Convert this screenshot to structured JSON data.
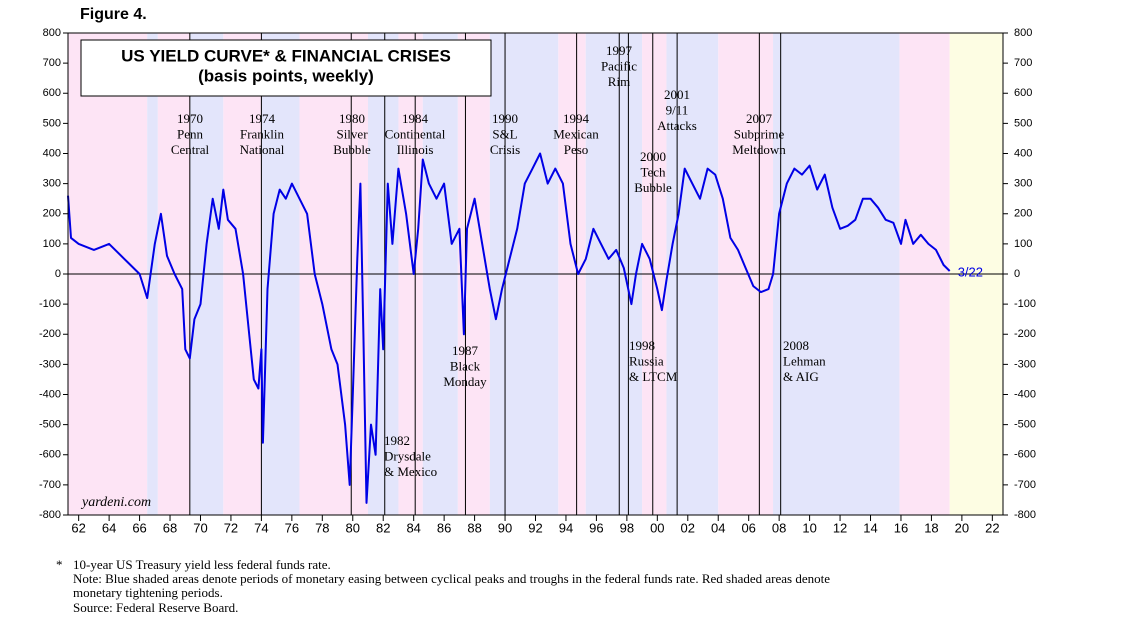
{
  "chart_data": {
    "type": "line",
    "figure_label": "Figure 4.",
    "title": "US YIELD CURVE* & FINANCIAL CRISES",
    "subtitle": "(basis points, weekly)",
    "watermark": "yardeni.com",
    "end_label": "3/22",
    "xlim": [
      1961.3,
      2022.7
    ],
    "ylim": [
      -800,
      800
    ],
    "yticks": [
      800,
      700,
      600,
      500,
      400,
      300,
      200,
      100,
      0,
      -100,
      -200,
      -300,
      -400,
      -500,
      -600,
      -700,
      -800
    ],
    "xticks": [
      {
        "value": 1962,
        "label": "62"
      },
      {
        "value": 1964,
        "label": "64"
      },
      {
        "value": 1966,
        "label": "66"
      },
      {
        "value": 1968,
        "label": "68"
      },
      {
        "value": 1970,
        "label": "70"
      },
      {
        "value": 1972,
        "label": "72"
      },
      {
        "value": 1974,
        "label": "74"
      },
      {
        "value": 1976,
        "label": "76"
      },
      {
        "value": 1978,
        "label": "78"
      },
      {
        "value": 1980,
        "label": "80"
      },
      {
        "value": 1982,
        "label": "82"
      },
      {
        "value": 1984,
        "label": "84"
      },
      {
        "value": 1986,
        "label": "86"
      },
      {
        "value": 1988,
        "label": "88"
      },
      {
        "value": 1990,
        "label": "90"
      },
      {
        "value": 1992,
        "label": "92"
      },
      {
        "value": 1994,
        "label": "94"
      },
      {
        "value": 1996,
        "label": "96"
      },
      {
        "value": 1998,
        "label": "98"
      },
      {
        "value": 2000,
        "label": "00"
      },
      {
        "value": 2002,
        "label": "02"
      },
      {
        "value": 2004,
        "label": "04"
      },
      {
        "value": 2006,
        "label": "06"
      },
      {
        "value": 2008,
        "label": "08"
      },
      {
        "value": 2010,
        "label": "10"
      },
      {
        "value": 2012,
        "label": "12"
      },
      {
        "value": 2014,
        "label": "14"
      },
      {
        "value": 2016,
        "label": "16"
      },
      {
        "value": 2018,
        "label": "18"
      },
      {
        "value": 2020,
        "label": "20"
      },
      {
        "value": 2022,
        "label": "22"
      }
    ],
    "period_colors": {
      "tightening": "#fde4f5",
      "easing": "#e3e5fb",
      "other": "#fdfde3"
    },
    "periods": [
      {
        "start": 1961.3,
        "end": 1966.5,
        "kind": "tightening"
      },
      {
        "start": 1966.5,
        "end": 1967.2,
        "kind": "easing"
      },
      {
        "start": 1967.2,
        "end": 1969.3,
        "kind": "tightening"
      },
      {
        "start": 1969.3,
        "end": 1971.5,
        "kind": "easing"
      },
      {
        "start": 1971.5,
        "end": 1974.0,
        "kind": "tightening"
      },
      {
        "start": 1974.0,
        "end": 1976.5,
        "kind": "easing"
      },
      {
        "start": 1976.5,
        "end": 1981.0,
        "kind": "tightening"
      },
      {
        "start": 1981.0,
        "end": 1983.0,
        "kind": "easing"
      },
      {
        "start": 1983.0,
        "end": 1984.6,
        "kind": "tightening"
      },
      {
        "start": 1984.6,
        "end": 1986.9,
        "kind": "easing"
      },
      {
        "start": 1986.9,
        "end": 1989.0,
        "kind": "tightening"
      },
      {
        "start": 1989.0,
        "end": 1993.5,
        "kind": "easing"
      },
      {
        "start": 1993.5,
        "end": 1995.3,
        "kind": "tightening"
      },
      {
        "start": 1995.3,
        "end": 1999.0,
        "kind": "easing"
      },
      {
        "start": 1999.0,
        "end": 2000.6,
        "kind": "tightening"
      },
      {
        "start": 2000.6,
        "end": 2004.0,
        "kind": "easing"
      },
      {
        "start": 2004.0,
        "end": 2007.6,
        "kind": "tightening"
      },
      {
        "start": 2007.6,
        "end": 2015.9,
        "kind": "easing"
      },
      {
        "start": 2015.9,
        "end": 2019.2,
        "kind": "tightening"
      },
      {
        "start": 2019.2,
        "end": 2022.7,
        "kind": "other"
      }
    ],
    "events": [
      {
        "x": 1969.3,
        "label": [
          "1970",
          "Penn",
          "Central"
        ]
      },
      {
        "x": 1974.0,
        "label": [
          "1974",
          "Franklin",
          "National"
        ]
      },
      {
        "x": 1979.9,
        "label": [
          "1980",
          "Silver",
          "Bubble"
        ]
      },
      {
        "x": 1982.1,
        "label": [
          "1982",
          "Drysdale",
          "& Mexico"
        ]
      },
      {
        "x": 1984.1,
        "label": [
          "1984",
          "Continental",
          "Illinois"
        ]
      },
      {
        "x": 1987.4,
        "label": [
          "1987",
          "Black",
          "Monday"
        ]
      },
      {
        "x": 1990.0,
        "label": [
          "1990",
          "S&L",
          "Crisis"
        ]
      },
      {
        "x": 1994.7,
        "label": [
          "1994",
          "Mexican",
          "Peso"
        ]
      },
      {
        "x": 1997.5,
        "label": [
          "1997",
          "Pacific",
          "Rim"
        ]
      },
      {
        "x": 1998.1,
        "label": [
          "1998",
          "Russia",
          "& LTCM"
        ]
      },
      {
        "x": 1999.7,
        "label": [
          "2000",
          "Tech",
          "Bubble"
        ]
      },
      {
        "x": 2001.3,
        "label": [
          "2001",
          "9/11",
          "Attacks"
        ]
      },
      {
        "x": 2006.7,
        "label": [
          "2007",
          "Subprime",
          "Meltdown"
        ]
      },
      {
        "x": 2008.1,
        "label": [
          "2008",
          "Lehman",
          "& AIG"
        ]
      }
    ],
    "series": [
      {
        "name": "US yield curve",
        "color": "#0000e6",
        "x": [
          1961.3,
          1961.5,
          1962,
          1963,
          1964,
          1965,
          1966,
          1966.5,
          1967,
          1967.4,
          1967.8,
          1968.3,
          1968.8,
          1969,
          1969.3,
          1969.6,
          1970,
          1970.4,
          1970.8,
          1971.2,
          1971.5,
          1971.8,
          1972.3,
          1972.8,
          1973.2,
          1973.5,
          1973.8,
          1974,
          1974.1,
          1974.4,
          1974.8,
          1975.2,
          1975.6,
          1976,
          1976.5,
          1977,
          1977.5,
          1978,
          1978.6,
          1979,
          1979.5,
          1979.8,
          1980,
          1980.3,
          1980.5,
          1980.7,
          1980.9,
          1981.2,
          1981.5,
          1981.8,
          1982,
          1982.3,
          1982.6,
          1983,
          1983.5,
          1984,
          1984.3,
          1984.6,
          1985,
          1985.5,
          1986,
          1986.5,
          1987,
          1987.3,
          1987.5,
          1988,
          1988.5,
          1989,
          1989.4,
          1989.8,
          1990.3,
          1990.8,
          1991.3,
          1991.8,
          1992.3,
          1992.8,
          1993.3,
          1993.8,
          1994.3,
          1994.8,
          1995.3,
          1995.8,
          1996.3,
          1996.8,
          1997.3,
          1997.8,
          1998.3,
          1998.6,
          1999,
          1999.5,
          2000,
          2000.3,
          2000.6,
          2001,
          2001.4,
          2001.8,
          2002.3,
          2002.8,
          2003.3,
          2003.8,
          2004.3,
          2004.8,
          2005.3,
          2005.8,
          2006.3,
          2006.8,
          2007.3,
          2007.6,
          2008,
          2008.5,
          2009,
          2009.5,
          2010,
          2010.5,
          2011,
          2011.5,
          2012,
          2012.5,
          2013,
          2013.5,
          2014,
          2014.5,
          2015,
          2015.5,
          2016,
          2016.3,
          2016.8,
          2017.3,
          2017.8,
          2018.3,
          2018.8,
          2019.2
        ],
        "values": [
          260,
          120,
          100,
          80,
          100,
          50,
          0,
          -80,
          100,
          200,
          60,
          0,
          -50,
          -250,
          -280,
          -150,
          -100,
          100,
          250,
          150,
          280,
          180,
          150,
          0,
          -200,
          -350,
          -380,
          -250,
          -560,
          -50,
          200,
          280,
          250,
          300,
          250,
          200,
          0,
          -100,
          -250,
          -300,
          -500,
          -700,
          -400,
          50,
          300,
          -200,
          -760,
          -500,
          -600,
          -50,
          -250,
          300,
          100,
          350,
          200,
          0,
          150,
          380,
          300,
          250,
          300,
          100,
          150,
          -200,
          150,
          250,
          100,
          -50,
          -150,
          -50,
          50,
          150,
          300,
          350,
          400,
          300,
          350,
          300,
          100,
          0,
          50,
          150,
          100,
          50,
          80,
          20,
          -100,
          0,
          100,
          50,
          -50,
          -120,
          -20,
          100,
          200,
          350,
          300,
          250,
          350,
          330,
          250,
          120,
          80,
          20,
          -40,
          -60,
          -50,
          0,
          200,
          300,
          350,
          330,
          360,
          280,
          330,
          220,
          150,
          160,
          180,
          250,
          250,
          220,
          180,
          170,
          100,
          180,
          100,
          130,
          100,
          80,
          30,
          10
        ]
      }
    ],
    "footnote_marker": "*",
    "footnotes": [
      "10-year US Treasury yield less federal funds rate.",
      "Note: Blue shaded areas denote periods of monetary easing between cyclical peaks and troughs in the federal funds rate. Red shaded areas denote",
      "monetary tightening periods.",
      "Source: Federal Reserve Board."
    ]
  }
}
